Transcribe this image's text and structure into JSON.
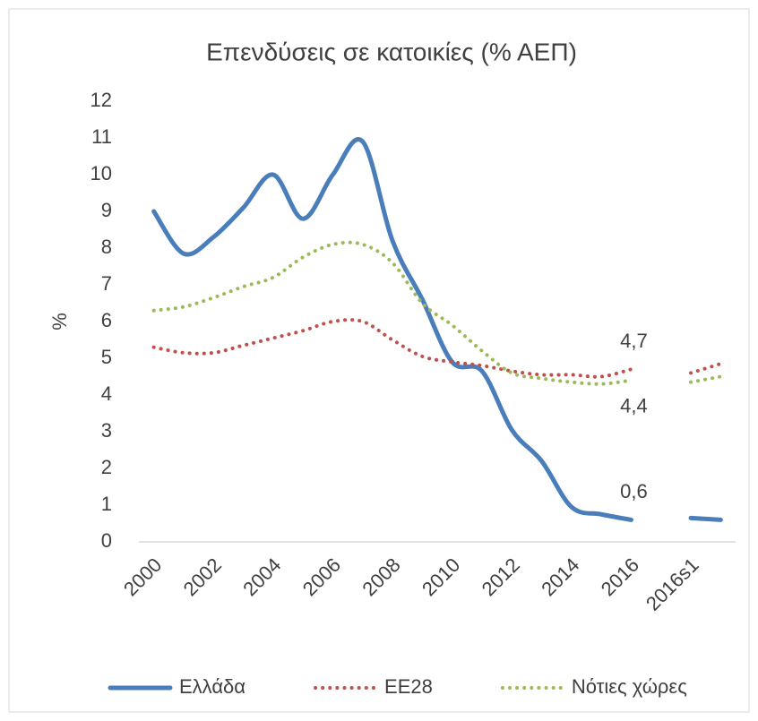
{
  "chart_data": {
    "type": "line",
    "title": "Επενδύσεις σε κατοικίες (% ΑΕΠ)",
    "y_label": "%",
    "categories": [
      "2000",
      null,
      "2002",
      null,
      "2004",
      null,
      "2006",
      null,
      "2008",
      null,
      "2010",
      null,
      "2012",
      null,
      "2014",
      null,
      "2016",
      null,
      "2016s1",
      null
    ],
    "series": [
      {
        "name": "Ελλάδα",
        "color": "#4a7ebb",
        "style": "solid",
        "values": [
          9.0,
          7.85,
          8.3,
          9.1,
          10.0,
          8.8,
          10.0,
          10.9,
          8.2,
          6.6,
          4.9,
          4.65,
          3.05,
          2.2,
          0.95,
          0.75,
          0.6,
          null,
          0.65,
          0.6
        ],
        "value_labels": [
          null,
          null,
          null,
          null,
          null,
          null,
          null,
          null,
          null,
          null,
          null,
          null,
          null,
          null,
          null,
          null,
          "0,6",
          null,
          null,
          null
        ]
      },
      {
        "name": "EE28",
        "color": "#c0504d",
        "style": "dotted",
        "values": [
          5.3,
          5.15,
          5.15,
          5.35,
          5.55,
          5.75,
          6.0,
          6.0,
          5.5,
          5.05,
          4.9,
          4.8,
          4.65,
          4.55,
          4.55,
          4.5,
          4.7,
          null,
          4.6,
          4.85
        ],
        "value_labels": [
          null,
          null,
          null,
          null,
          null,
          null,
          null,
          null,
          null,
          null,
          null,
          null,
          null,
          null,
          null,
          null,
          "4,7",
          null,
          null,
          null
        ]
      },
      {
        "name": "Νότιες χώρες",
        "color": "#9bbb59",
        "style": "dotted",
        "values": [
          6.3,
          6.4,
          6.65,
          6.95,
          7.2,
          7.75,
          8.1,
          8.1,
          7.6,
          6.5,
          5.9,
          5.2,
          4.6,
          4.45,
          4.35,
          4.3,
          4.4,
          null,
          4.35,
          4.5
        ],
        "value_labels": [
          null,
          null,
          null,
          null,
          null,
          null,
          null,
          null,
          null,
          null,
          null,
          null,
          null,
          null,
          null,
          null,
          "4,4",
          null,
          null,
          null
        ]
      }
    ],
    "ylim": [
      0,
      12
    ],
    "yticks": [
      0,
      1,
      2,
      3,
      4,
      5,
      6,
      7,
      8,
      9,
      10,
      11,
      12
    ],
    "grid": false,
    "legend": "bottom"
  }
}
